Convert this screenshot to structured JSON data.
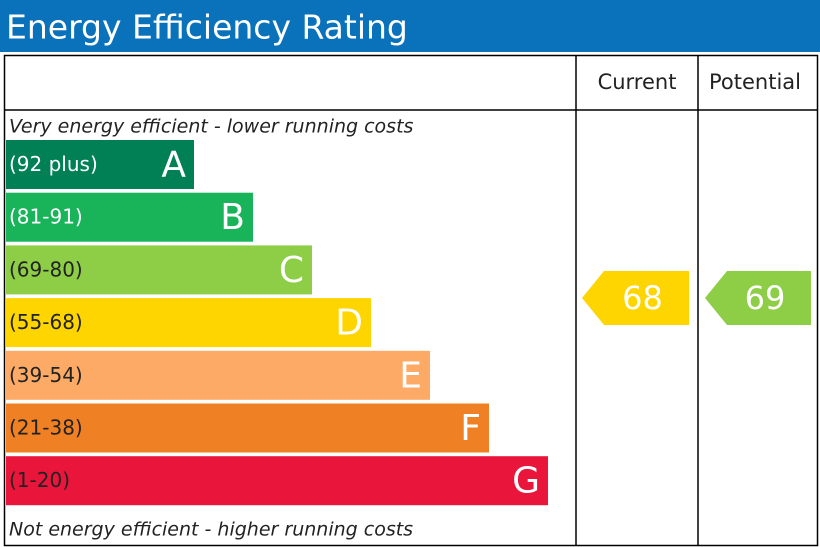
{
  "header": {
    "title": "Energy Efficiency Rating"
  },
  "columns": {
    "current": "Current",
    "potential": "Potential"
  },
  "top_note": "Very energy efficient - lower running costs",
  "bottom_note": "Not energy efficient - higher running costs",
  "bands": [
    {
      "range": "(92 plus)",
      "letter": "A",
      "color": "#008054"
    },
    {
      "range": "(81-91)",
      "letter": "B",
      "color": "#19b459"
    },
    {
      "range": "(69-80)",
      "letter": "C",
      "color": "#8dce46"
    },
    {
      "range": "(55-68)",
      "letter": "D",
      "color": "#ffd500"
    },
    {
      "range": "(39-54)",
      "letter": "E",
      "color": "#fcaa65"
    },
    {
      "range": "(21-38)",
      "letter": "F",
      "color": "#ef8023"
    },
    {
      "range": "(1-20)",
      "letter": "G",
      "color": "#e9153b"
    }
  ],
  "current": {
    "value": 68,
    "color": "#ffd500"
  },
  "potential": {
    "value": 69,
    "color": "#8dce46"
  }
}
